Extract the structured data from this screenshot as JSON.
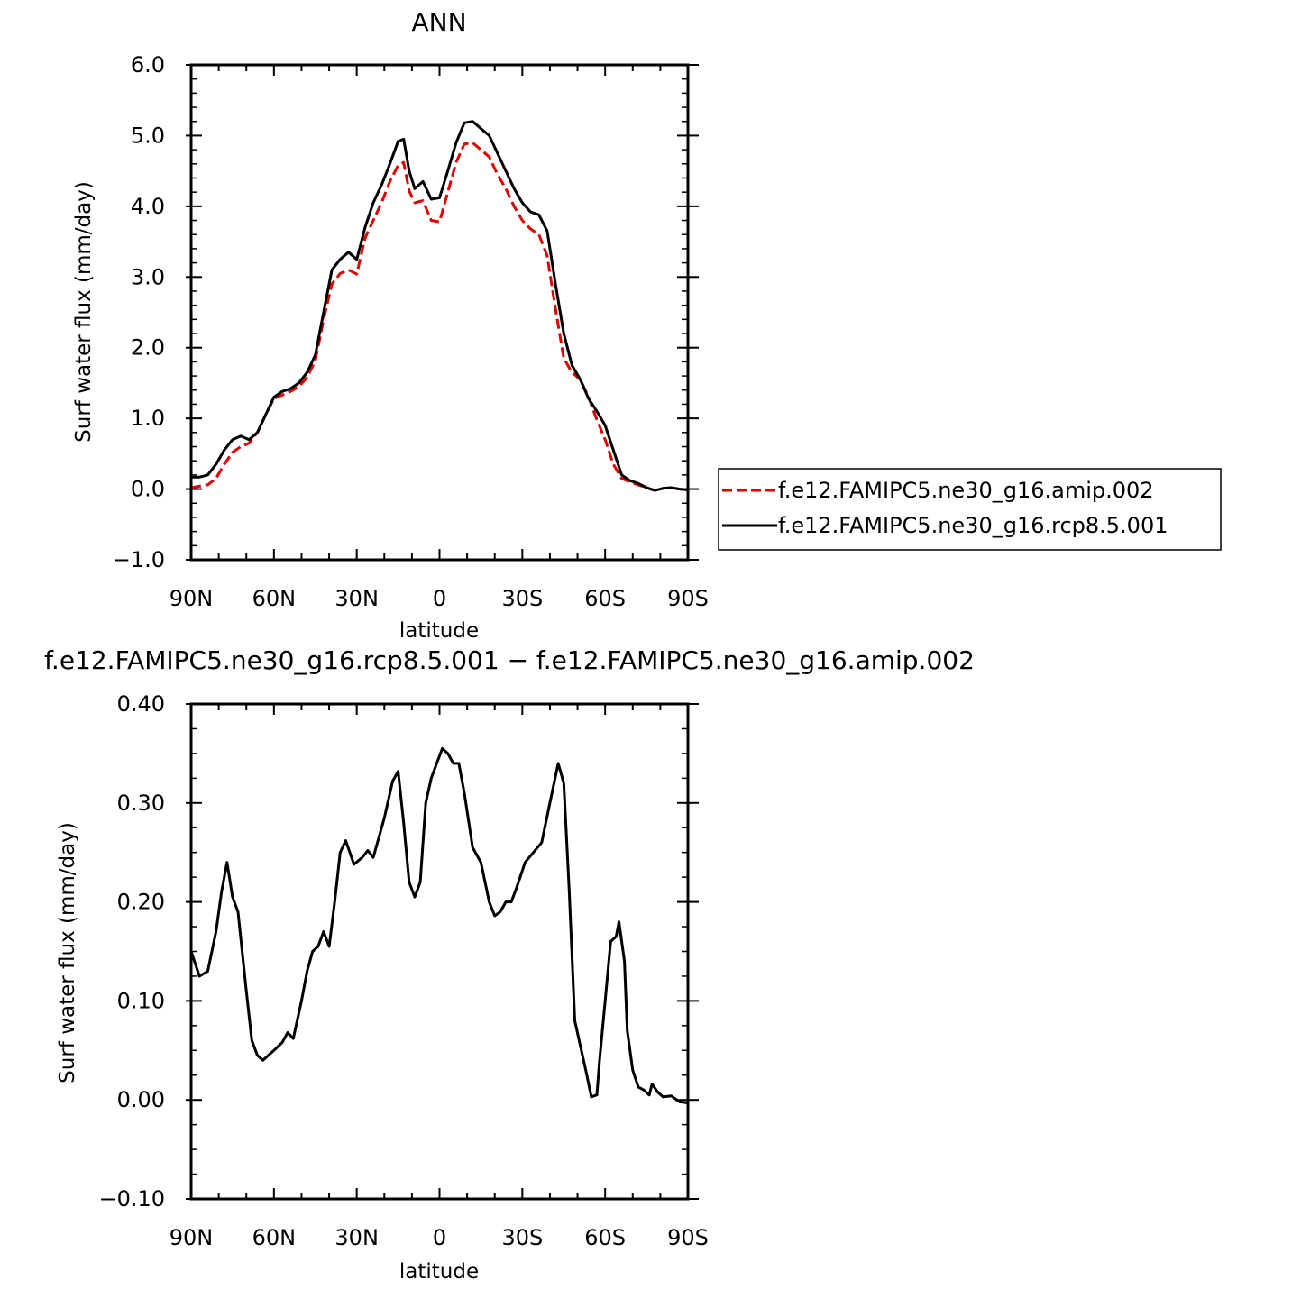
{
  "chart_data": [
    {
      "type": "line",
      "title": "ANN",
      "xlabel": "latitude",
      "ylabel": "Surf water flux (mm/day)",
      "x_ticks": [
        "90N",
        "60N",
        "30N",
        "0",
        "30S",
        "60S",
        "90S"
      ],
      "y_ticks": [
        "6.0",
        "5.0",
        "4.0",
        "3.0",
        "2.0",
        "1.0",
        "0.0",
        "−1.0"
      ],
      "xlim": [
        90,
        -90
      ],
      "ylim": [
        -1.0,
        6.0
      ],
      "legend_position": "right",
      "grid": false,
      "x": [
        90,
        87,
        84,
        81,
        78,
        75,
        72,
        69,
        66,
        63,
        60,
        57,
        54,
        51,
        48,
        45,
        42,
        39,
        36,
        33,
        30,
        27,
        24,
        21,
        18,
        15,
        13,
        11,
        9,
        6,
        3,
        0,
        -3,
        -6,
        -9,
        -12,
        -15,
        -18,
        -21,
        -24,
        -27,
        -30,
        -33,
        -36,
        -39,
        -42,
        -45,
        -48,
        -51,
        -54,
        -57,
        -60,
        -63,
        -66,
        -69,
        -72,
        -75,
        -78,
        -81,
        -84,
        -87,
        -90
      ],
      "series": [
        {
          "name": "f.e12.FAMIPC5.ne30_g16.amip.002",
          "color": "#e00000",
          "dash": true,
          "values": [
            0.02,
            0.04,
            0.06,
            0.15,
            0.35,
            0.52,
            0.6,
            0.65,
            0.8,
            1.05,
            1.28,
            1.33,
            1.38,
            1.45,
            1.58,
            1.82,
            2.4,
            2.9,
            3.05,
            3.1,
            3.04,
            3.55,
            3.8,
            4.05,
            4.35,
            4.58,
            4.62,
            4.22,
            4.05,
            4.08,
            3.8,
            3.78,
            4.2,
            4.62,
            4.88,
            4.9,
            4.8,
            4.7,
            4.45,
            4.25,
            4.0,
            3.8,
            3.68,
            3.6,
            3.3,
            2.55,
            1.85,
            1.65,
            1.55,
            1.3,
            0.98,
            0.7,
            0.35,
            0.15,
            0.1,
            0.06,
            0.02,
            -0.02,
            0.01,
            0.02,
            0.0,
            -0.01
          ]
        },
        {
          "name": "f.e12.FAMIPC5.ne30_g16.rcp8.5.001",
          "color": "#000000",
          "dash": false,
          "values": [
            0.17,
            0.17,
            0.2,
            0.35,
            0.55,
            0.7,
            0.75,
            0.7,
            0.8,
            1.05,
            1.3,
            1.38,
            1.42,
            1.5,
            1.65,
            1.9,
            2.5,
            3.1,
            3.25,
            3.35,
            3.25,
            3.7,
            4.05,
            4.3,
            4.6,
            4.92,
            4.95,
            4.5,
            4.25,
            4.35,
            4.1,
            4.12,
            4.5,
            4.9,
            5.18,
            5.2,
            5.1,
            5.0,
            4.75,
            4.5,
            4.25,
            4.05,
            3.92,
            3.88,
            3.65,
            2.9,
            2.2,
            1.75,
            1.55,
            1.28,
            1.1,
            0.9,
            0.55,
            0.2,
            0.12,
            0.08,
            0.02,
            -0.02,
            0.01,
            0.02,
            0.0,
            -0.01
          ]
        }
      ]
    },
    {
      "type": "line",
      "title": "f.e12.FAMIPC5.ne30_g16.rcp8.5.001 − f.e12.FAMIPC5.ne30_g16.amip.002",
      "xlabel": "latitude",
      "ylabel": "Surf water flux (mm/day)",
      "x_ticks": [
        "90N",
        "60N",
        "30N",
        "0",
        "30S",
        "60S",
        "90S"
      ],
      "y_ticks": [
        "0.40",
        "0.30",
        "0.20",
        "0.10",
        "0.00",
        "−0.10"
      ],
      "xlim": [
        90,
        -90
      ],
      "ylim": [
        -0.1,
        0.4
      ],
      "grid": false,
      "x": [
        90,
        87,
        84,
        81,
        79,
        77,
        75,
        73,
        70,
        68,
        66,
        64,
        62,
        60,
        57,
        55,
        53,
        50,
        48,
        46,
        44,
        42,
        40,
        38,
        36,
        34,
        31,
        28,
        26,
        24,
        22,
        20,
        17,
        15,
        13,
        11,
        9,
        7,
        5,
        3,
        1,
        -1,
        -3,
        -5,
        -7,
        -9,
        -12,
        -15,
        -18,
        -20,
        -22,
        -24,
        -26,
        -28,
        -31,
        -34,
        -37,
        -40,
        -43,
        -45,
        -47,
        -49,
        -51,
        -53,
        -55,
        -57,
        -58,
        -60,
        -62,
        -64,
        -65,
        -67,
        -68,
        -70,
        -72,
        -74,
        -76,
        -77,
        -79,
        -81,
        -84,
        -87,
        -90
      ],
      "series": [
        {
          "name": "",
          "color": "#000000",
          "dash": false,
          "values": [
            0.15,
            0.125,
            0.13,
            0.17,
            0.21,
            0.24,
            0.205,
            0.19,
            0.11,
            0.06,
            0.045,
            0.04,
            0.045,
            0.05,
            0.058,
            0.068,
            0.062,
            0.1,
            0.13,
            0.15,
            0.155,
            0.17,
            0.155,
            0.2,
            0.25,
            0.262,
            0.238,
            0.245,
            0.252,
            0.245,
            0.265,
            0.285,
            0.322,
            0.332,
            0.28,
            0.22,
            0.205,
            0.22,
            0.3,
            0.325,
            0.34,
            0.355,
            0.35,
            0.34,
            0.34,
            0.31,
            0.255,
            0.24,
            0.2,
            0.186,
            0.19,
            0.2,
            0.2,
            0.215,
            0.24,
            0.25,
            0.26,
            0.3,
            0.34,
            0.32,
            0.21,
            0.08,
            0.055,
            0.03,
            0.003,
            0.005,
            0.04,
            0.1,
            0.16,
            0.165,
            0.18,
            0.14,
            0.07,
            0.03,
            0.013,
            0.01,
            0.005,
            0.016,
            0.008,
            0.003,
            0.004,
            -0.002,
            -0.003
          ]
        }
      ]
    }
  ]
}
